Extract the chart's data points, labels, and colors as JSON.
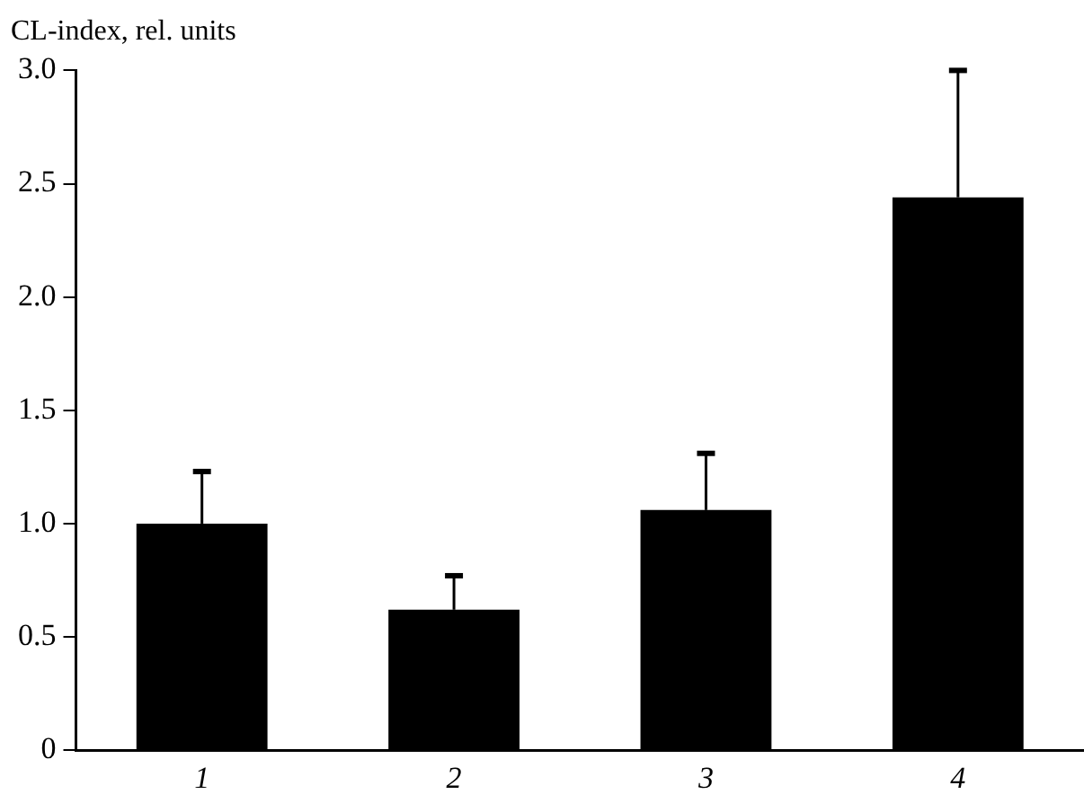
{
  "chart_data": {
    "type": "bar",
    "ylabel": "CL-index, rel. units",
    "categories": [
      "1",
      "2",
      "3",
      "4"
    ],
    "values": [
      1.0,
      0.62,
      1.06,
      2.44
    ],
    "errors": [
      [
        1.0,
        1.23
      ],
      [
        0.62,
        0.77
      ],
      [
        1.06,
        1.31
      ],
      [
        2.44,
        3.0
      ]
    ],
    "color": "#000000",
    "ylim": [
      0,
      3.0
    ],
    "yticks": [
      {
        "value": 0,
        "label": "0"
      },
      {
        "value": 0.5,
        "label": "0.5"
      },
      {
        "value": 1.0,
        "label": "1.0"
      },
      {
        "value": 1.5,
        "label": "1.5"
      },
      {
        "value": 2.0,
        "label": "2.0"
      },
      {
        "value": 2.5,
        "label": "2.5"
      },
      {
        "value": 3.0,
        "label": "3.0"
      }
    ],
    "grid": false,
    "legend": false
  }
}
